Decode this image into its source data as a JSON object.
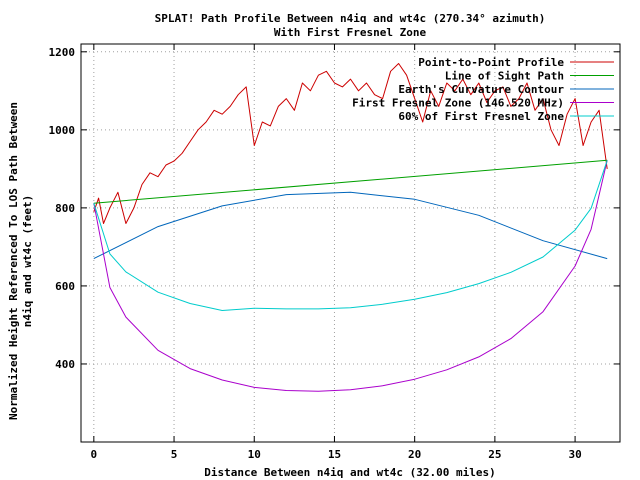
{
  "chart_data": {
    "type": "line",
    "title": "SPLAT! Path Profile Between n4iq and wt4c (270.34° azimuth)",
    "subtitle": "With First Fresnel Zone",
    "xlabel": "Distance Between n4iq and wt4c (32.00 miles)",
    "ylabel_line1": "Normalized Height Referenced To LOS Path Between",
    "ylabel_line2": "n4iq and wt4c (feet)",
    "xlim": [
      -0.8,
      32.8
    ],
    "ylim": [
      200,
      1220
    ],
    "xticks": [
      0,
      5,
      10,
      15,
      20,
      25,
      30
    ],
    "yticks": [
      400,
      600,
      800,
      1000,
      1200
    ],
    "grid": true,
    "legend_position": "top-right",
    "series": [
      {
        "name": "Point-to-Point Profile",
        "color": "#cc0000",
        "x": [
          0,
          0.3,
          0.6,
          1,
          1.5,
          2,
          2.5,
          3,
          3.5,
          4,
          4.5,
          5,
          5.5,
          6,
          6.5,
          7,
          7.5,
          8,
          8.5,
          9,
          9.5,
          10,
          10.5,
          11,
          11.5,
          12,
          12.5,
          13,
          13.5,
          14,
          14.5,
          15,
          15.5,
          16,
          16.5,
          17,
          17.5,
          18,
          18.5,
          19,
          19.5,
          20,
          20.5,
          21,
          21.5,
          22,
          22.5,
          23,
          23.5,
          24,
          24.5,
          25,
          25.5,
          26,
          26.5,
          27,
          27.5,
          28,
          28.5,
          29,
          29.5,
          30,
          30.5,
          31,
          31.5,
          32
        ],
        "y": [
          790,
          825,
          760,
          800,
          840,
          760,
          800,
          860,
          890,
          880,
          910,
          920,
          940,
          970,
          1000,
          1020,
          1050,
          1040,
          1060,
          1090,
          1110,
          960,
          1020,
          1010,
          1060,
          1080,
          1050,
          1120,
          1100,
          1140,
          1150,
          1120,
          1110,
          1130,
          1100,
          1120,
          1090,
          1080,
          1150,
          1170,
          1140,
          1080,
          1020,
          1100,
          1060,
          1120,
          1100,
          1130,
          1090,
          1120,
          1070,
          1100,
          1110,
          1060,
          1080,
          1120,
          1050,
          1080,
          1000,
          960,
          1040,
          1080,
          960,
          1020,
          1050,
          900
        ]
      },
      {
        "name": "Line of Sight Path",
        "color": "#00a000",
        "x": [
          0,
          32
        ],
        "y": [
          812,
          922
        ]
      },
      {
        "name": "Earth's Curvature Contour",
        "color": "#0066bb",
        "x": [
          0,
          4,
          8,
          12,
          16,
          20,
          24,
          28,
          32
        ],
        "y": [
          670,
          752,
          805,
          834,
          840,
          822,
          781,
          716,
          670
        ]
      },
      {
        "name": "First Fresnel Zone (146.520 MHz)",
        "color": "#aa00cc",
        "x": [
          0,
          1,
          2,
          4,
          6,
          8,
          10,
          12,
          14,
          16,
          18,
          20,
          22,
          24,
          26,
          28,
          30,
          31,
          32
        ],
        "y": [
          812,
          596,
          520,
          435,
          388,
          359,
          340,
          332,
          330,
          334,
          344,
          361,
          385,
          418,
          465,
          534,
          651,
          745,
          922
        ]
      },
      {
        "name": "60% of First Fresnel Zone",
        "color": "#00cccc",
        "x": [
          0,
          1,
          2,
          4,
          6,
          8,
          10,
          12,
          14,
          16,
          18,
          20,
          22,
          24,
          26,
          28,
          30,
          31,
          32
        ],
        "y": [
          812,
          682,
          636,
          584,
          555,
          537,
          543,
          541,
          541,
          544,
          553,
          566,
          583,
          606,
          635,
          674,
          743,
          799,
          922
        ]
      }
    ]
  }
}
